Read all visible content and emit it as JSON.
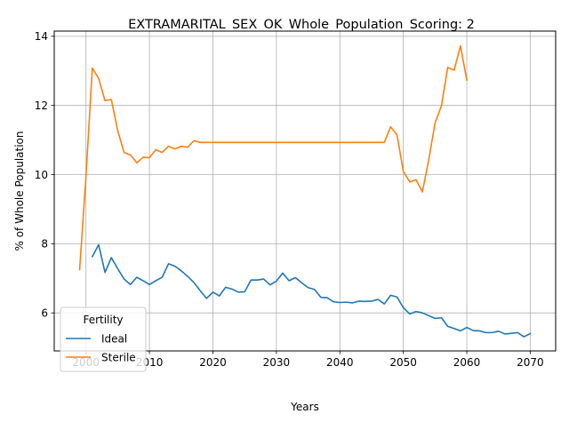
{
  "chart_data": {
    "type": "line",
    "title": "EXTRAMARITAL_SEX_OK_Whole_Population_Scoring: 2",
    "xlabel": "Years",
    "ylabel": "% of Whole Population",
    "xlim": [
      1995,
      2074
    ],
    "ylim": [
      4.9,
      14.15
    ],
    "x_ticks": [
      2000,
      2010,
      2020,
      2030,
      2040,
      2050,
      2060,
      2070
    ],
    "y_ticks": [
      6,
      8,
      10,
      12,
      14
    ],
    "grid": true,
    "legend": {
      "title": "Fertility",
      "placement": "lower-left"
    },
    "series": [
      {
        "name": "Ideal",
        "color": "#1f77b4",
        "x": [
          2001,
          2002,
          2003,
          2004,
          2005,
          2006,
          2007,
          2008,
          2009,
          2010,
          2011,
          2012,
          2013,
          2014,
          2015,
          2016,
          2017,
          2018,
          2019,
          2020,
          2021,
          2022,
          2023,
          2024,
          2025,
          2026,
          2027,
          2028,
          2029,
          2030,
          2031,
          2032,
          2033,
          2034,
          2035,
          2036,
          2037,
          2038,
          2039,
          2040,
          2041,
          2042,
          2043,
          2044,
          2045,
          2046,
          2047,
          2048,
          2049,
          2050,
          2051,
          2052,
          2053,
          2054,
          2055,
          2056,
          2057,
          2058,
          2059,
          2060,
          2061,
          2062,
          2063,
          2064,
          2065,
          2066,
          2067,
          2068,
          2069,
          2070
        ],
        "values": [
          7.63,
          7.97,
          7.17,
          7.6,
          7.28,
          6.98,
          6.82,
          7.03,
          6.93,
          6.82,
          6.93,
          7.03,
          7.42,
          7.35,
          7.22,
          7.06,
          6.88,
          6.64,
          6.42,
          6.6,
          6.49,
          6.74,
          6.69,
          6.6,
          6.61,
          6.95,
          6.95,
          6.98,
          6.81,
          6.92,
          7.15,
          6.93,
          7.02,
          6.87,
          6.73,
          6.68,
          6.45,
          6.44,
          6.32,
          6.3,
          6.31,
          6.29,
          6.34,
          6.33,
          6.34,
          6.39,
          6.26,
          6.51,
          6.46,
          6.15,
          5.97,
          6.04,
          6.0,
          5.92,
          5.84,
          5.86,
          5.61,
          5.55,
          5.48,
          5.58,
          5.49,
          5.48,
          5.43,
          5.43,
          5.47,
          5.39,
          5.41,
          5.43,
          5.31,
          5.4
        ]
      },
      {
        "name": "Sterile",
        "color": "#ff7f0e",
        "x": [
          1999,
          2000,
          2001,
          2002,
          2003,
          2004,
          2005,
          2006,
          2007,
          2008,
          2009,
          2010,
          2011,
          2012,
          2013,
          2014,
          2015,
          2016,
          2017,
          2018,
          2019,
          2020,
          2021,
          2022,
          2023,
          2024,
          2025,
          2026,
          2027,
          2028,
          2029,
          2030,
          2031,
          2032,
          2033,
          2034,
          2035,
          2036,
          2037,
          2038,
          2039,
          2040,
          2041,
          2042,
          2043,
          2044,
          2045,
          2046,
          2047,
          2048,
          2049,
          2050,
          2051,
          2052,
          2053,
          2054,
          2055,
          2056,
          2057,
          2058,
          2059,
          2060
        ],
        "values": [
          7.25,
          9.95,
          13.08,
          12.78,
          12.14,
          12.17,
          11.27,
          10.64,
          10.57,
          10.34,
          10.5,
          10.49,
          10.72,
          10.64,
          10.82,
          10.74,
          10.82,
          10.79,
          10.98,
          10.93,
          10.93,
          10.93,
          10.93,
          10.93,
          10.93,
          10.93,
          10.93,
          10.93,
          10.93,
          10.93,
          10.93,
          10.93,
          10.93,
          10.93,
          10.93,
          10.93,
          10.93,
          10.93,
          10.93,
          10.93,
          10.93,
          10.93,
          10.93,
          10.93,
          10.93,
          10.93,
          10.93,
          10.93,
          10.93,
          11.38,
          11.15,
          10.09,
          9.79,
          9.85,
          9.5,
          10.43,
          11.49,
          11.99,
          13.1,
          13.02,
          13.72,
          12.73
        ]
      }
    ]
  }
}
